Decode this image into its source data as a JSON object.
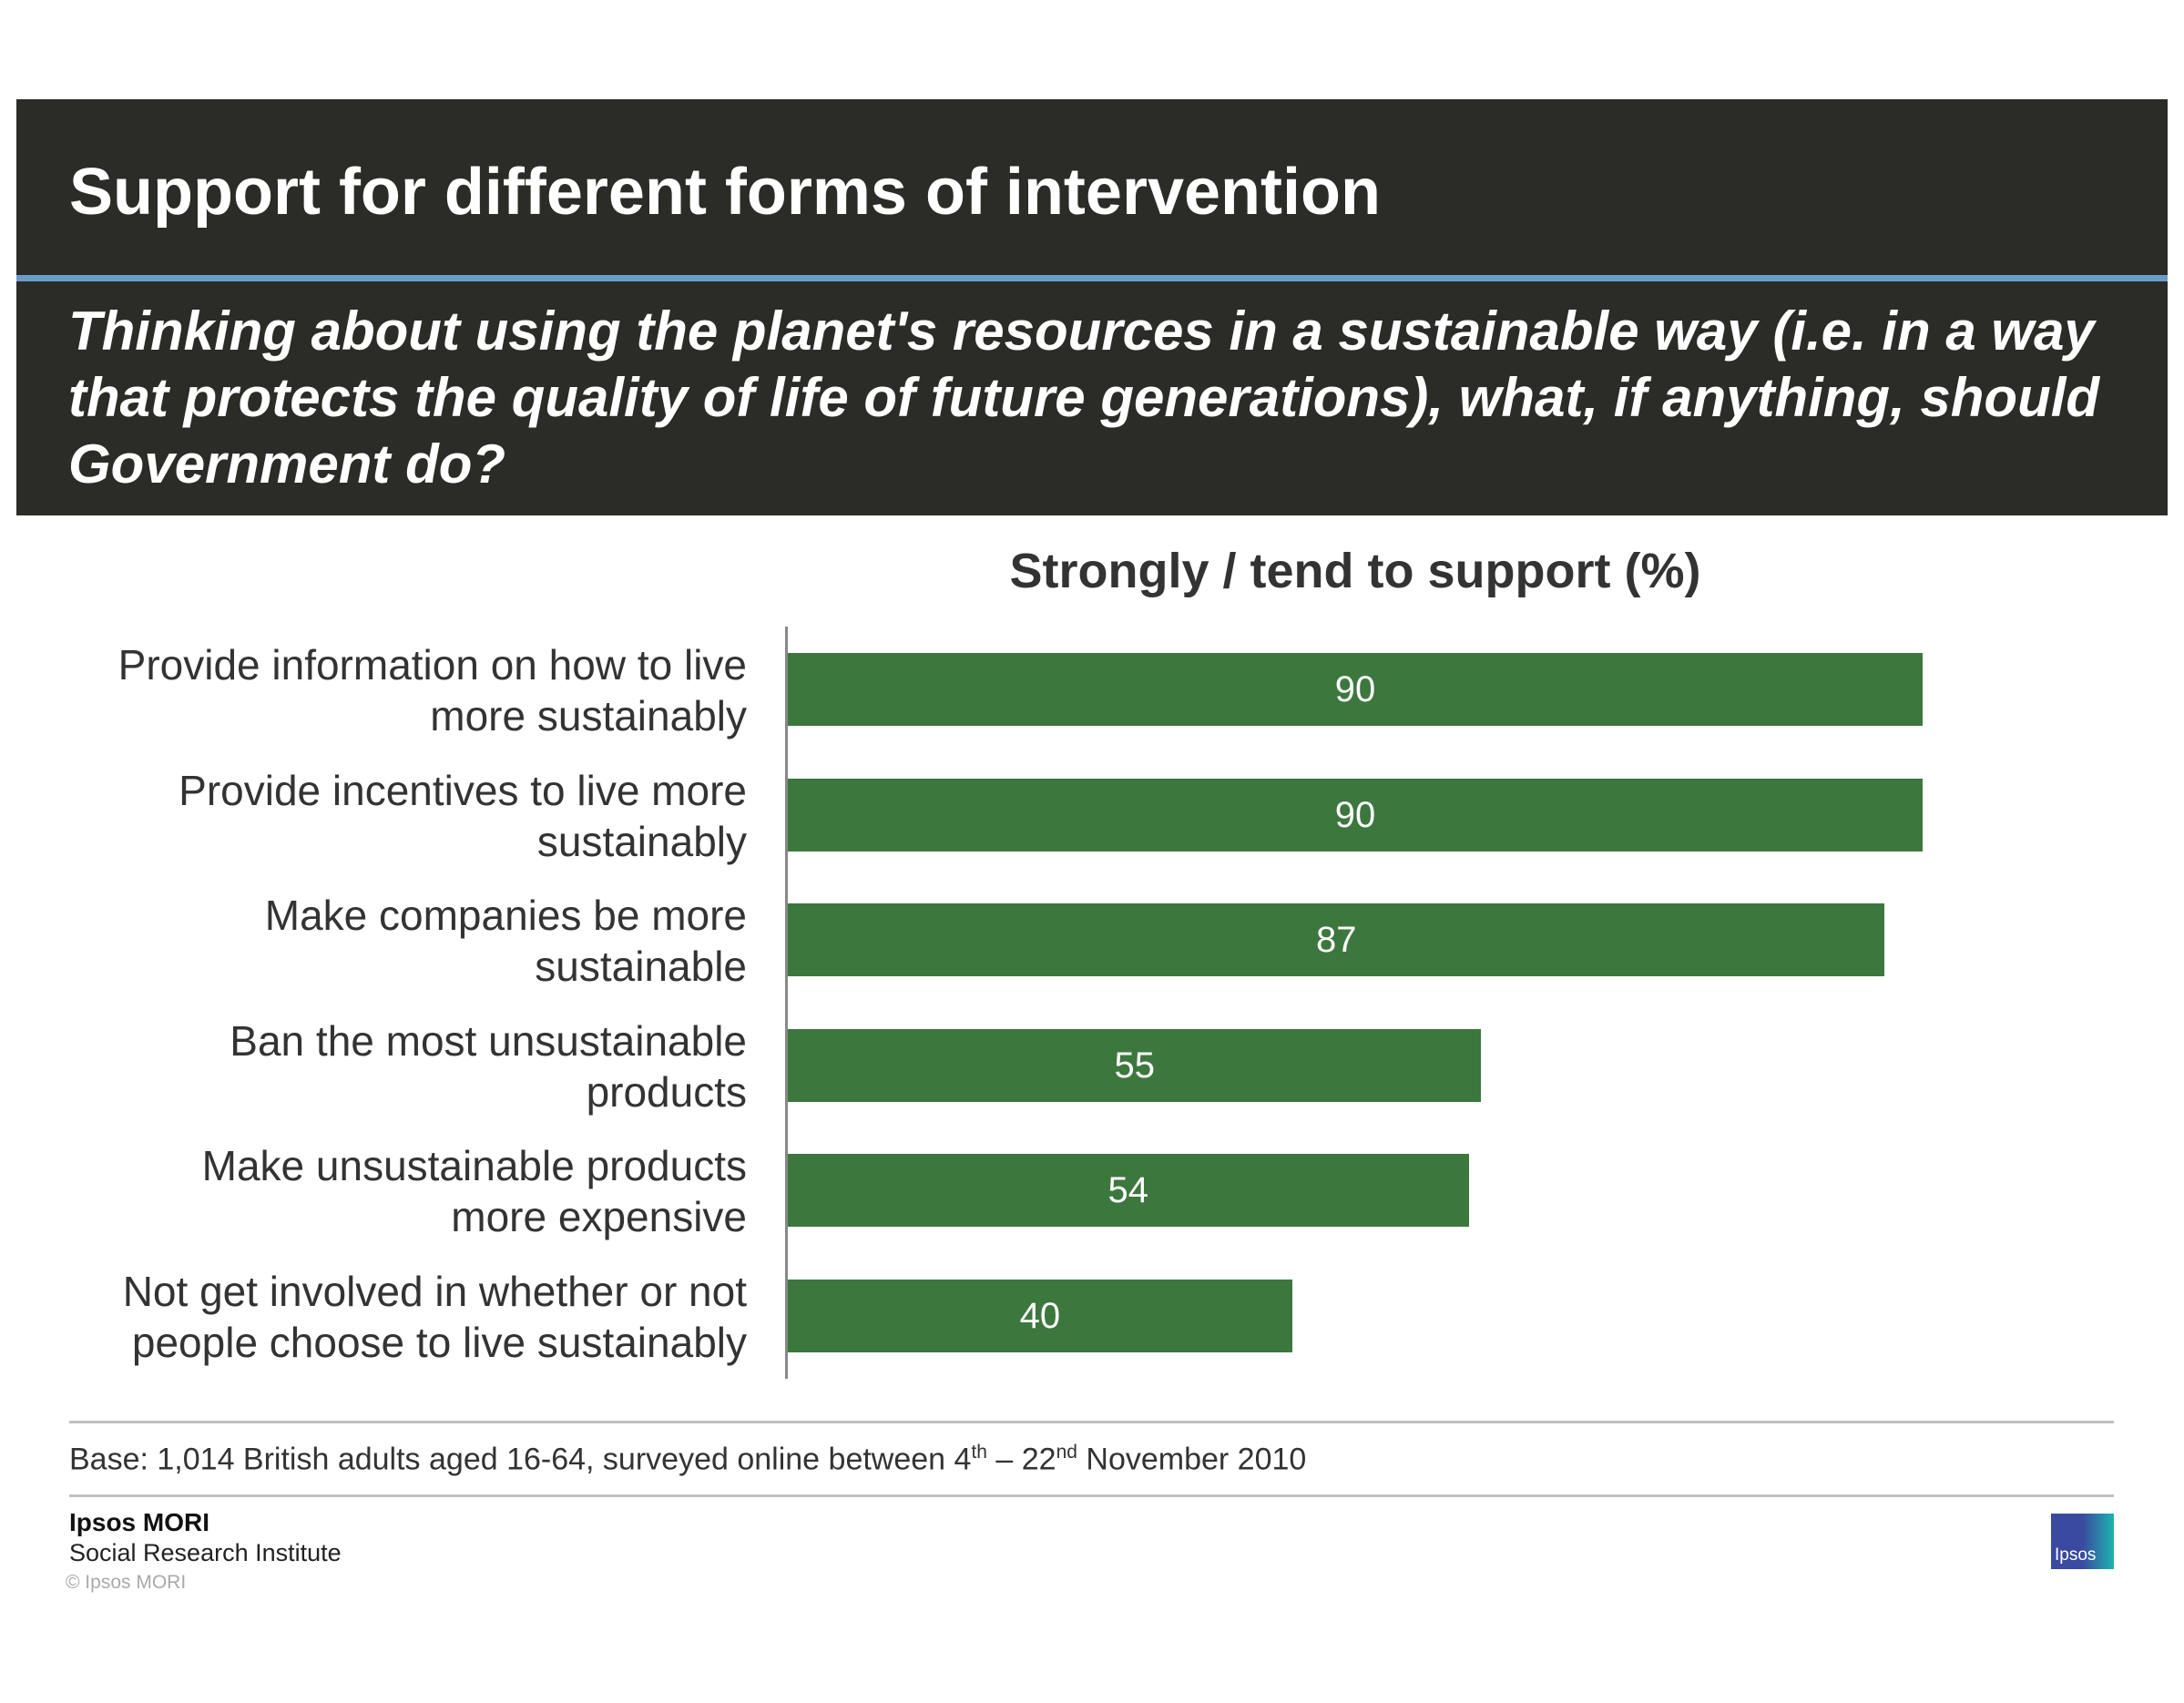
{
  "header": {
    "title": "Support for different forms of intervention",
    "question": "Thinking about using the planet's resources in a sustainable way (i.e. in a way that protects the quality of life of future generations), what, if anything, should Government do?"
  },
  "chart_data": {
    "type": "bar",
    "orientation": "horizontal",
    "title": "Strongly / tend to support (%)",
    "categories": [
      [
        "Provide information on how to live",
        "more sustainably"
      ],
      [
        "Provide incentives to live more",
        "sustainably"
      ],
      [
        "Make companies be more",
        "sustainable"
      ],
      [
        "Ban the most unsustainable",
        "products"
      ],
      [
        "Make unsustainable products",
        "more expensive"
      ],
      [
        "Not get involved in whether or not",
        "people choose to live sustainably"
      ]
    ],
    "values": [
      90,
      90,
      87,
      55,
      54,
      40
    ],
    "xlim": [
      0,
      100
    ],
    "grid": false,
    "bar_color": "#3c773d"
  },
  "footer": {
    "base_prefix": "Base: 1,014 British adults aged 16-64, surveyed online between 4",
    "base_sup1": "th",
    "base_mid": " – 22",
    "base_sup2": "nd",
    "base_suffix": " November 2010",
    "brand_name": "Ipsos MORI",
    "brand_division": "Social Research Institute",
    "copyright": "© Ipsos MORI",
    "logo_text": "Ipsos"
  },
  "colors": {
    "header_bg": "#2b2b27",
    "accent_rule": "#6a9ec9",
    "bar": "#3c773d"
  }
}
